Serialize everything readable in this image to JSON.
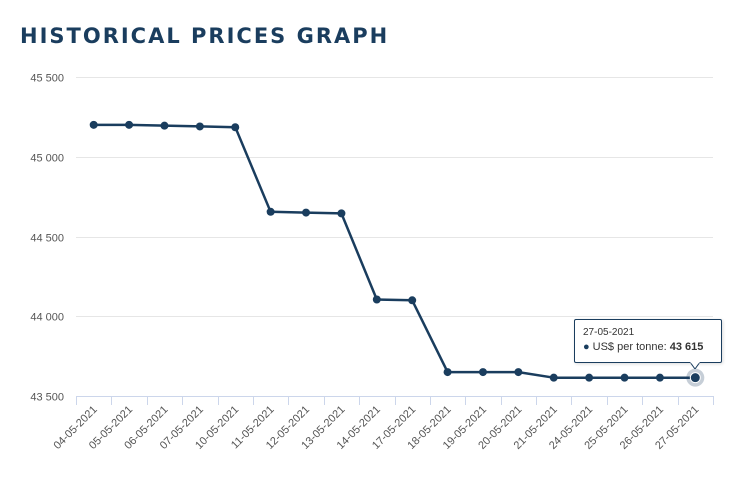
{
  "page": {
    "title": "HISTORICAL PRICES GRAPH"
  },
  "tooltip": {
    "date": "27-05-2021",
    "series_label": "US$ per tonne: ",
    "value": "43 615"
  },
  "colors": {
    "series": "#1a3d5e",
    "grid": "#e6e6e6",
    "axis": "#ccd6eb",
    "title": "#1a3d5e"
  },
  "chart_data": {
    "type": "line",
    "title": "HISTORICAL PRICES GRAPH",
    "xlabel": "",
    "ylabel": "",
    "categories": [
      "04-05-2021",
      "05-05-2021",
      "06-05-2021",
      "07-05-2021",
      "10-05-2021",
      "11-05-2021",
      "12-05-2021",
      "13-05-2021",
      "14-05-2021",
      "17-05-2021",
      "18-05-2021",
      "19-05-2021",
      "20-05-2021",
      "21-05-2021",
      "24-05-2021",
      "25-05-2021",
      "26-05-2021",
      "27-05-2021"
    ],
    "series": [
      {
        "name": "US$ per tonne",
        "values": [
          45200,
          45200,
          45195,
          45190,
          45185,
          44655,
          44650,
          44645,
          44105,
          44100,
          43650,
          43650,
          43650,
          43615,
          43615,
          43615,
          43615,
          43615
        ]
      }
    ],
    "ylim": [
      43500,
      45500
    ],
    "yticks": [
      43500,
      44000,
      44500,
      45000,
      45500
    ],
    "ytick_labels": [
      "43 500",
      "44 000",
      "44 500",
      "45 000",
      "45 500"
    ],
    "grid": true,
    "highlighted_index": 17
  }
}
